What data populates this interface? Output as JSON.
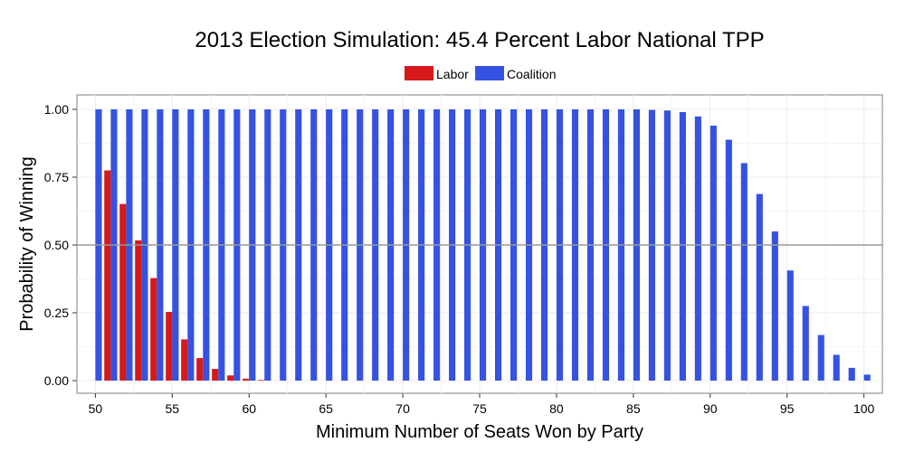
{
  "chart_data": {
    "type": "bar",
    "title": "2013 Election Simulation: 45.4 Percent Labor National TPP",
    "xlabel": "Minimum Number of Seats Won by Party",
    "ylabel": "Probability of Winning",
    "x_range": [
      50,
      100
    ],
    "ylim": [
      0,
      1
    ],
    "x_ticks": [
      "50",
      "55",
      "60",
      "65",
      "70",
      "75",
      "80",
      "85",
      "90",
      "95",
      "100"
    ],
    "y_ticks": [
      "0.00",
      "0.25",
      "0.50",
      "0.75",
      "1.00"
    ],
    "reference_line": 0.5,
    "grid": true,
    "legend_position": "top-center",
    "colors": {
      "Labor": "#d7191c",
      "Coalition": "#3552e0",
      "reference_line": "#999999"
    },
    "series": [
      {
        "name": "Labor",
        "x_start": 51,
        "values": [
          0.775,
          0.651,
          0.517,
          0.378,
          0.253,
          0.152,
          0.083,
          0.043,
          0.019,
          0.007,
          0.002
        ]
      },
      {
        "name": "Coalition",
        "x_start": 50,
        "values": [
          1.0,
          1.0,
          1.0,
          1.0,
          1.0,
          1.0,
          1.0,
          1.0,
          1.0,
          1.0,
          1.0,
          1.0,
          1.0,
          1.0,
          1.0,
          1.0,
          1.0,
          1.0,
          1.0,
          1.0,
          1.0,
          1.0,
          1.0,
          1.0,
          1.0,
          1.0,
          1.0,
          1.0,
          1.0,
          1.0,
          1.0,
          1.0,
          1.0,
          1.0,
          1.0,
          1.0,
          0.998,
          0.996,
          0.99,
          0.974,
          0.94,
          0.888,
          0.802,
          0.688,
          0.55,
          0.406,
          0.275,
          0.168,
          0.095,
          0.047,
          0.022
        ]
      }
    ]
  }
}
